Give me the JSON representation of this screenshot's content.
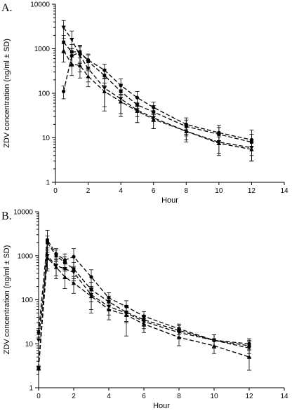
{
  "chart_data": [
    {
      "type": "line",
      "panel_label": "A.",
      "title": "",
      "xlabel": "Hour",
      "ylabel": "ZDV concentration (ng/ml ± SD)",
      "log_y": true,
      "xlim": [
        0,
        14
      ],
      "ylim": [
        1,
        10000
      ],
      "x_ticks": [
        0,
        2,
        4,
        6,
        8,
        10,
        12,
        14
      ],
      "y_ticks": [
        1,
        10,
        100,
        1000,
        10000
      ],
      "grid": false,
      "legend": "none",
      "series": [
        {
          "marker": "circle",
          "x": [
            0.5,
            1,
            1.5,
            2,
            3,
            4,
            5,
            6,
            8,
            10,
            12
          ],
          "y": [
            110,
            700,
            820,
            560,
            330,
            150,
            80,
            48,
            20,
            13,
            9
          ],
          "err": [
            35,
            300,
            350,
            200,
            120,
            60,
            30,
            15,
            8,
            6,
            6
          ]
        },
        {
          "marker": "square",
          "x": [
            0.5,
            1,
            1.5,
            2,
            3,
            4,
            5,
            6,
            8,
            10,
            12
          ],
          "y": [
            1400,
            850,
            850,
            520,
            250,
            110,
            55,
            38,
            18,
            12,
            8
          ],
          "err": [
            600,
            400,
            350,
            200,
            100,
            50,
            25,
            15,
            7,
            5,
            4
          ]
        },
        {
          "marker": "triangle-down",
          "x": [
            0.5,
            1,
            1.5,
            2,
            3,
            4,
            5,
            6,
            8,
            10,
            12
          ],
          "y": [
            3000,
            1600,
            700,
            360,
            130,
            75,
            42,
            28,
            14,
            8,
            6
          ],
          "err": [
            1300,
            900,
            400,
            180,
            90,
            45,
            20,
            12,
            6,
            4,
            3
          ]
        },
        {
          "marker": "triangle-up",
          "x": [
            0.5,
            1,
            1.5,
            2,
            3,
            4,
            5,
            6,
            8,
            10,
            12
          ],
          "y": [
            900,
            450,
            420,
            240,
            110,
            65,
            40,
            26,
            14,
            7.5,
            5.5
          ],
          "err": [
            400,
            200,
            200,
            100,
            60,
            30,
            18,
            10,
            5,
            3,
            2.5
          ]
        }
      ]
    },
    {
      "type": "line",
      "panel_label": "B.",
      "title": "",
      "xlabel": "Hour",
      "ylabel": "ZDV concentration (ng/ml ± SD)",
      "log_y": true,
      "xlim": [
        0,
        14
      ],
      "ylim": [
        1,
        10000
      ],
      "x_ticks": [
        0,
        2,
        4,
        6,
        8,
        10,
        12,
        14
      ],
      "y_ticks": [
        1,
        10,
        100,
        1000,
        10000
      ],
      "grid": false,
      "legend": "none",
      "series": [
        {
          "marker": "circle",
          "x": [
            0,
            0.5,
            1,
            1.5,
            2,
            3,
            4,
            5,
            6,
            8,
            10,
            12
          ],
          "y": [
            18,
            2300,
            1100,
            800,
            950,
            330,
            110,
            70,
            42,
            22,
            12,
            10
          ],
          "err": [
            4,
            1500,
            350,
            300,
            500,
            150,
            35,
            25,
            12,
            6,
            4,
            3
          ]
        },
        {
          "marker": "square",
          "x": [
            0,
            0.5,
            1,
            1.5,
            2,
            3,
            4,
            5,
            6,
            8,
            10,
            12
          ],
          "y": [
            2.8,
            2000,
            1000,
            700,
            500,
            170,
            90,
            52,
            35,
            20,
            12,
            9
          ],
          "err": [
            0.3,
            800,
            350,
            250,
            200,
            80,
            30,
            20,
            10,
            6,
            4,
            3
          ]
        },
        {
          "marker": "triangle-down",
          "x": [
            0,
            0.5,
            1,
            1.5,
            2,
            3,
            4,
            5,
            6,
            8,
            10,
            12
          ],
          "y": [
            12,
            1000,
            600,
            500,
            420,
            130,
            70,
            50,
            32,
            18,
            12,
            8
          ],
          "err": [
            4,
            500,
            250,
            200,
            150,
            70,
            25,
            20,
            10,
            5,
            4,
            3
          ]
        },
        {
          "marker": "triangle-up",
          "x": [
            0,
            0.5,
            1,
            1.5,
            2,
            3,
            4,
            5,
            6,
            8,
            10,
            12
          ],
          "y": [
            2.8,
            900,
            550,
            330,
            240,
            120,
            60,
            45,
            28,
            14,
            9,
            5
          ],
          "err": [
            0.3,
            450,
            250,
            150,
            100,
            70,
            25,
            30,
            10,
            5,
            3,
            2.5
          ]
        }
      ]
    }
  ]
}
